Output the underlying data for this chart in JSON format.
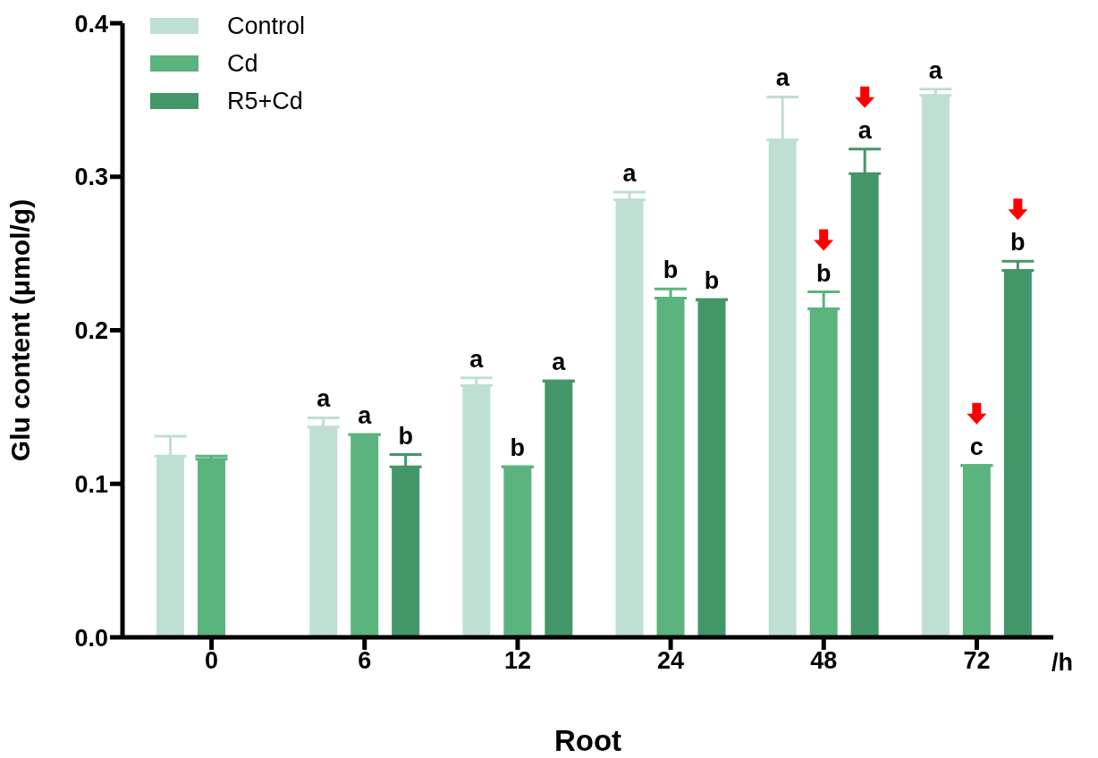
{
  "chart_data": {
    "type": "bar",
    "xlabel": "Root",
    "ylabel": "Glu content (μmol/g)",
    "categories": [
      "0",
      "6",
      "12",
      "24",
      "48",
      "72"
    ],
    "series": [
      {
        "name": "Control",
        "color": "#bfdfd3",
        "values": [
          0.118,
          0.137,
          0.164,
          0.285,
          0.324,
          0.353
        ],
        "errors": [
          [
            0.118,
            0.131
          ],
          [
            0.137,
            0.143
          ],
          [
            0.164,
            0.169
          ],
          [
            0.285,
            0.29
          ],
          [
            0.324,
            0.352
          ],
          [
            0.353,
            0.357
          ]
        ],
        "value_labels": [
          null,
          "a",
          "a",
          "a",
          "a",
          "a"
        ]
      },
      {
        "name": "Cd",
        "color": "#5bb37e",
        "values": [
          0.116,
          0.132,
          0.111,
          0.221,
          0.214,
          0.112
        ],
        "errors": [
          [
            0.116,
            0.118
          ],
          null,
          null,
          [
            0.221,
            0.227
          ],
          [
            0.214,
            0.225
          ],
          null
        ],
        "value_labels": [
          null,
          "a",
          "b",
          "b",
          "b",
          "c"
        ]
      },
      {
        "name": "R5+Cd",
        "color": "#439668",
        "values": [
          null,
          0.111,
          0.167,
          0.22,
          0.302,
          0.239
        ],
        "errors": [
          null,
          [
            0.111,
            0.119
          ],
          null,
          null,
          [
            0.302,
            0.318
          ],
          [
            0.239,
            0.245
          ]
        ],
        "value_labels": [
          null,
          "b",
          "a",
          "b",
          "a",
          "b"
        ]
      }
    ],
    "ylim": [
      0,
      0.4
    ],
    "yticks": [
      {
        "value": 0,
        "label": "0.0"
      },
      {
        "value": 0.1,
        "label": "0.1"
      },
      {
        "value": 0.2,
        "label": "0.2"
      },
      {
        "value": 0.3,
        "label": "0.3"
      },
      {
        "value": 0.4,
        "label": "0.4"
      }
    ],
    "annotations": [
      "/h"
    ],
    "legend": "top left"
  }
}
